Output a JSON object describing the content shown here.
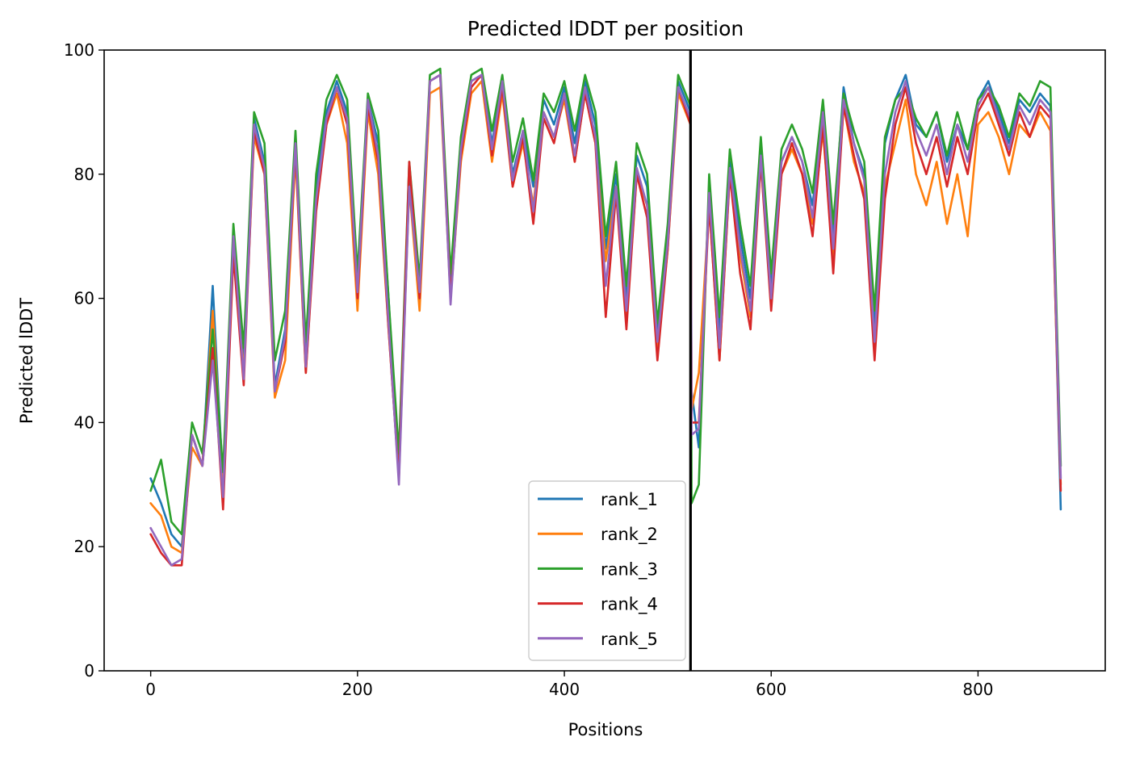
{
  "chart_data": {
    "type": "line",
    "title": "Predicted lDDT per position",
    "xlabel": "Positions",
    "ylabel": "Predicted lDDT",
    "xlim": [
      -45,
      923
    ],
    "ylim": [
      0,
      100
    ],
    "xticks": [
      0,
      200,
      400,
      600,
      800
    ],
    "yticks": [
      0,
      20,
      40,
      60,
      80,
      100
    ],
    "legend_position": "lower-center-right",
    "grid": false,
    "vertical_line_x": 522,
    "x": [
      0,
      10,
      20,
      30,
      40,
      50,
      60,
      70,
      80,
      90,
      100,
      110,
      120,
      130,
      140,
      150,
      160,
      170,
      180,
      190,
      200,
      210,
      220,
      230,
      240,
      250,
      260,
      270,
      280,
      290,
      300,
      310,
      320,
      330,
      340,
      350,
      360,
      370,
      380,
      390,
      400,
      410,
      420,
      430,
      440,
      450,
      460,
      470,
      480,
      490,
      500,
      510,
      522,
      523,
      530,
      540,
      550,
      560,
      570,
      580,
      590,
      600,
      610,
      620,
      630,
      640,
      650,
      660,
      670,
      680,
      690,
      700,
      710,
      720,
      730,
      740,
      750,
      760,
      770,
      780,
      790,
      800,
      810,
      820,
      830,
      840,
      850,
      860,
      870,
      880
    ],
    "series": [
      {
        "name": "rank_1",
        "color": "#1f77b4",
        "values": [
          31,
          27,
          22,
          20,
          38,
          33,
          62,
          30,
          70,
          50,
          89,
          82,
          46,
          55,
          86,
          52,
          78,
          90,
          95,
          90,
          62,
          92,
          85,
          60,
          32,
          80,
          62,
          95,
          96,
          62,
          85,
          95,
          96,
          85,
          95,
          80,
          87,
          78,
          92,
          88,
          94,
          85,
          95,
          88,
          68,
          80,
          60,
          83,
          78,
          55,
          70,
          95,
          90,
          45,
          36,
          78,
          55,
          82,
          70,
          60,
          84,
          62,
          82,
          86,
          82,
          75,
          90,
          70,
          94,
          85,
          80,
          55,
          85,
          92,
          96,
          88,
          86,
          90,
          82,
          88,
          84,
          92,
          95,
          90,
          85,
          92,
          90,
          93,
          91,
          26
        ]
      },
      {
        "name": "rank_2",
        "color": "#ff7f0e",
        "values": [
          27,
          25,
          20,
          19,
          36,
          33,
          58,
          30,
          68,
          48,
          86,
          80,
          44,
          50,
          83,
          48,
          75,
          88,
          93,
          85,
          58,
          90,
          80,
          55,
          31,
          78,
          58,
          93,
          94,
          60,
          82,
          93,
          95,
          82,
          93,
          78,
          85,
          75,
          90,
          86,
          92,
          82,
          93,
          85,
          66,
          78,
          56,
          80,
          75,
          52,
          68,
          93,
          88,
          42,
          48,
          75,
          50,
          80,
          67,
          57,
          82,
          60,
          80,
          84,
          80,
          72,
          87,
          66,
          91,
          82,
          77,
          52,
          78,
          85,
          92,
          80,
          75,
          82,
          72,
          80,
          70,
          88,
          90,
          86,
          80,
          88,
          86,
          90,
          87,
          30
        ]
      },
      {
        "name": "rank_3",
        "color": "#2ca02c",
        "values": [
          29,
          34,
          24,
          22,
          40,
          35,
          55,
          32,
          72,
          52,
          90,
          85,
          50,
          58,
          87,
          53,
          80,
          92,
          96,
          92,
          64,
          93,
          87,
          60,
          35,
          82,
          63,
          96,
          97,
          64,
          86,
          96,
          97,
          87,
          96,
          82,
          89,
          79,
          93,
          90,
          95,
          87,
          96,
          90,
          70,
          82,
          62,
          85,
          80,
          56,
          72,
          96,
          91,
          27,
          30,
          80,
          57,
          84,
          72,
          62,
          86,
          64,
          84,
          88,
          84,
          77,
          92,
          72,
          93,
          87,
          82,
          58,
          86,
          92,
          94,
          89,
          86,
          90,
          83,
          90,
          84,
          92,
          94,
          91,
          86,
          93,
          91,
          95,
          94,
          33
        ]
      },
      {
        "name": "rank_4",
        "color": "#d62728",
        "values": [
          22,
          19,
          17,
          17,
          38,
          33,
          52,
          26,
          67,
          46,
          87,
          80,
          45,
          53,
          84,
          48,
          74,
          88,
          94,
          88,
          60,
          91,
          82,
          55,
          31,
          82,
          60,
          95,
          96,
          60,
          83,
          94,
          96,
          83,
          94,
          78,
          86,
          72,
          89,
          85,
          93,
          82,
          93,
          85,
          57,
          77,
          55,
          80,
          73,
          50,
          68,
          94,
          88,
          40,
          40,
          75,
          50,
          80,
          64,
          55,
          82,
          58,
          80,
          85,
          80,
          70,
          88,
          64,
          91,
          83,
          76,
          50,
          76,
          88,
          94,
          85,
          80,
          86,
          78,
          86,
          80,
          90,
          93,
          88,
          83,
          90,
          86,
          91,
          89,
          29
        ]
      },
      {
        "name": "rank_5",
        "color": "#9467bd",
        "values": [
          23,
          20,
          17,
          18,
          38,
          33,
          50,
          28,
          70,
          47,
          88,
          81,
          45,
          54,
          85,
          49,
          76,
          89,
          94,
          89,
          61,
          92,
          83,
          56,
          30,
          78,
          61,
          95,
          96,
          59,
          84,
          95,
          96,
          84,
          95,
          79,
          87,
          74,
          90,
          86,
          93,
          83,
          94,
          86,
          62,
          78,
          58,
          81,
          75,
          53,
          69,
          94,
          89,
          38,
          39,
          77,
          52,
          81,
          68,
          58,
          83,
          60,
          82,
          86,
          82,
          73,
          90,
          68,
          92,
          85,
          79,
          53,
          80,
          90,
          95,
          87,
          83,
          88,
          80,
          88,
          82,
          91,
          94,
          89,
          84,
          91,
          88,
          92,
          90,
          31
        ]
      }
    ]
  }
}
